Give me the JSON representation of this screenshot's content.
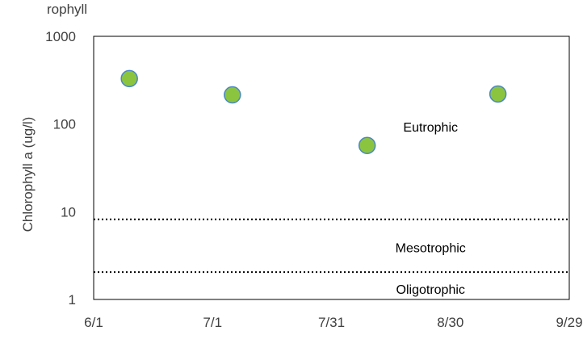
{
  "chart_data": {
    "type": "scatter",
    "title_fragment": "rophyll",
    "ylabel": "Chlorophyll a (ug/l)",
    "xlabel": "",
    "y_scale": "log",
    "ylim": [
      1,
      1000
    ],
    "xlim": [
      "6/1",
      "9/29"
    ],
    "x_ticks": [
      "6/1",
      "7/1",
      "7/31",
      "8/30",
      "9/29"
    ],
    "y_ticks": [
      "1",
      "10",
      "100",
      "1000"
    ],
    "grid": false,
    "legend": "none",
    "marker_color": "#8BC53F",
    "marker_edge_color": "#4A86C5",
    "series": [
      {
        "points": [
          {
            "x": "6/10",
            "y": 330
          },
          {
            "x": "7/6",
            "y": 215
          },
          {
            "x": "8/9",
            "y": 57
          },
          {
            "x": "9/11",
            "y": 220
          }
        ]
      }
    ],
    "threshold_lines": [
      {
        "y": 8.2,
        "style": "dotted"
      },
      {
        "y": 2.05,
        "style": "dotted"
      }
    ],
    "zone_labels": [
      {
        "text": "Eutrophic",
        "y": 82,
        "x": "8/25"
      },
      {
        "text": "Mesotrophic",
        "y": 3.45,
        "x": "8/25"
      },
      {
        "text": "Oligotrophic",
        "y": 1.16,
        "x": "8/25"
      }
    ]
  }
}
